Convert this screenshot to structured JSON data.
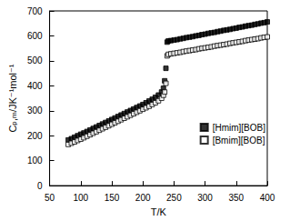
{
  "chart_data": {
    "type": "scatter",
    "x_label": "T/K",
    "y_label": "Cₚ,ₘ/JK⁻¹mol⁻¹",
    "xlim": [
      50,
      400
    ],
    "xticks": [
      50,
      100,
      150,
      200,
      250,
      300,
      350,
      400
    ],
    "ylim": [
      0,
      700
    ],
    "yticks": [
      0,
      100,
      200,
      300,
      400,
      500,
      600,
      700
    ],
    "grid": false,
    "legend": "right",
    "series": [
      {
        "name": "[Hmim][BOB]",
        "color": "#000000",
        "marker": "square",
        "x": [
          80,
          85,
          90,
          95,
          100,
          105,
          110,
          115,
          120,
          125,
          130,
          135,
          140,
          145,
          150,
          155,
          160,
          165,
          170,
          175,
          180,
          185,
          190,
          195,
          200,
          205,
          210,
          215,
          220,
          225,
          230,
          233,
          235,
          237,
          239,
          241,
          245,
          250,
          255,
          260,
          265,
          270,
          275,
          280,
          285,
          290,
          295,
          300,
          305,
          310,
          315,
          320,
          325,
          330,
          335,
          340,
          345,
          350,
          355,
          360,
          365,
          370,
          375,
          380,
          385,
          390,
          395,
          400
        ],
        "values": [
          183,
          188,
          194,
          200,
          206,
          211,
          217,
          223,
          229,
          235,
          241,
          247,
          253,
          259,
          265,
          271,
          277,
          283,
          289,
          295,
          301,
          307,
          313,
          319,
          325,
          332,
          339,
          346,
          354,
          363,
          375,
          390,
          420,
          470,
          575,
          580,
          581,
          583,
          585,
          588,
          590,
          593,
          595,
          597,
          600,
          602,
          605,
          607,
          610,
          612,
          614,
          617,
          619,
          622,
          624,
          626,
          629,
          631,
          634,
          636,
          639,
          641,
          643,
          646,
          648,
          651,
          653,
          656
        ]
      },
      {
        "name": "[Bmim][BOB]",
        "color": "#000000",
        "marker": "square-open",
        "x": [
          80,
          85,
          90,
          95,
          100,
          105,
          110,
          115,
          120,
          125,
          130,
          135,
          140,
          145,
          150,
          155,
          160,
          165,
          170,
          175,
          180,
          185,
          190,
          195,
          200,
          205,
          210,
          215,
          220,
          225,
          230,
          233,
          235,
          237,
          239,
          241,
          245,
          250,
          255,
          260,
          265,
          270,
          275,
          280,
          285,
          290,
          295,
          300,
          305,
          310,
          315,
          320,
          325,
          330,
          335,
          340,
          345,
          350,
          355,
          360,
          365,
          370,
          375,
          380,
          385,
          390,
          395,
          400
        ],
        "values": [
          165,
          170,
          175,
          181,
          186,
          192,
          198,
          204,
          210,
          216,
          222,
          228,
          234,
          240,
          246,
          252,
          258,
          264,
          270,
          276,
          282,
          288,
          294,
          300,
          306,
          312,
          318,
          325,
          332,
          340,
          350,
          362,
          375,
          410,
          520,
          526,
          528,
          530,
          532,
          534,
          537,
          539,
          541,
          543,
          545,
          548,
          550,
          552,
          554,
          556,
          559,
          561,
          563,
          565,
          567,
          570,
          572,
          574,
          576,
          578,
          581,
          583,
          585,
          587,
          589,
          592,
          594,
          596
        ]
      }
    ]
  }
}
